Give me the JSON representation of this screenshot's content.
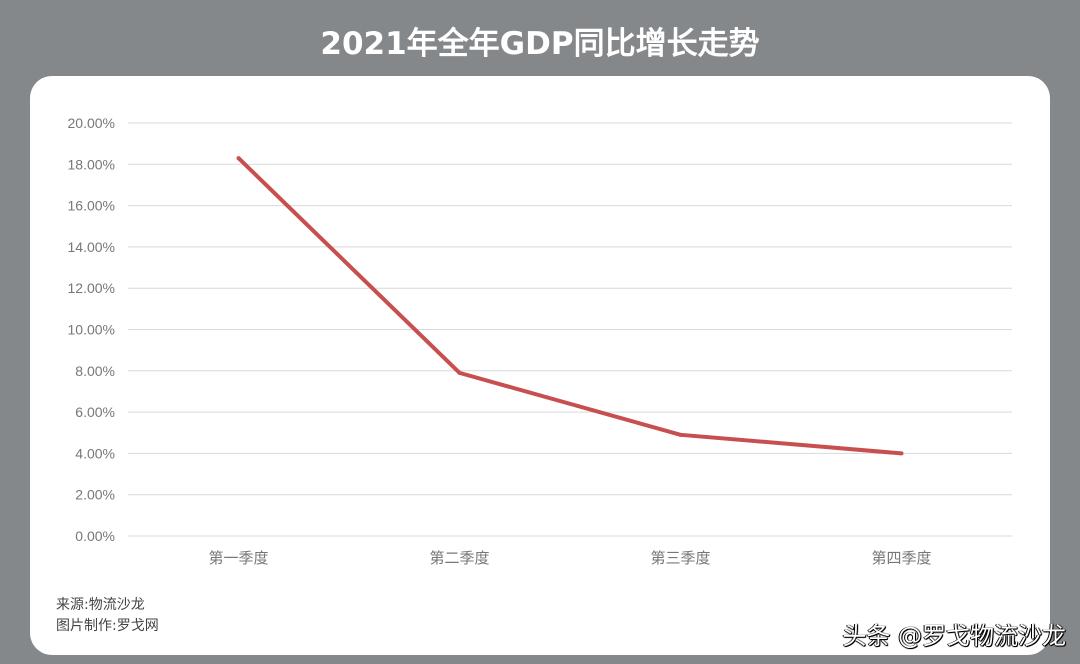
{
  "chart_data": {
    "type": "line",
    "title": "2021年全年GDP同比增长走势",
    "categories": [
      "第一季度",
      "第二季度",
      "第三季度",
      "第四季度"
    ],
    "series": [
      {
        "name": "GDP同比增长",
        "values": [
          18.3,
          7.9,
          4.9,
          4.0
        ],
        "color": "#c84f4f"
      }
    ],
    "ylim": [
      0,
      20
    ],
    "yticks": [
      "0.00%",
      "2.00%",
      "4.00%",
      "6.00%",
      "8.00%",
      "10.00%",
      "12.00%",
      "14.00%",
      "16.00%",
      "18.00%",
      "20.00%"
    ],
    "grid": true,
    "xlabel": "",
    "ylabel": ""
  },
  "footer": {
    "source": "来源:物流沙龙",
    "maker": "图片制作:罗戈网"
  },
  "watermark": "头条 @罗戈物流沙龙"
}
